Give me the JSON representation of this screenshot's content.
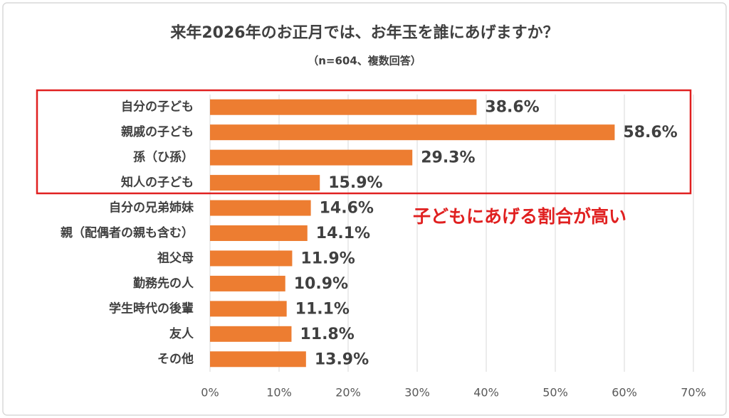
{
  "chart_data": {
    "type": "barh",
    "title": "来年2026年のお正月では、お年玉を誰にあげますか？",
    "subtitle": "（n=604、複数回答）",
    "annotation": "子どもにあげる割合が高い",
    "categories": [
      "自分の子ども",
      "親戚の子ども",
      "孫（ひ孫）",
      "知人の子ども",
      "自分の兄弟姉妹",
      "親（配偶者の親も含む）",
      "祖父母",
      "勤務先の人",
      "学生時代の後輩",
      "友人",
      "その他"
    ],
    "values": [
      38.6,
      58.6,
      29.3,
      15.9,
      14.6,
      14.1,
      11.9,
      10.9,
      11.1,
      11.8,
      13.9
    ],
    "value_labels": [
      "38.6%",
      "58.6%",
      "29.3%",
      "15.9%",
      "14.6%",
      "14.1%",
      "11.9%",
      "10.9%",
      "11.1%",
      "11.8%",
      "13.9%"
    ],
    "color": "#ed7d31",
    "xlim": [
      0,
      70
    ],
    "xticks": [
      {
        "value": 0,
        "label": "0%"
      },
      {
        "value": 10,
        "label": "10%"
      },
      {
        "value": 20,
        "label": "20%"
      },
      {
        "value": 30,
        "label": "30%"
      },
      {
        "value": 40,
        "label": "40%"
      },
      {
        "value": 50,
        "label": "50%"
      },
      {
        "value": 60,
        "label": "60%"
      },
      {
        "value": 70,
        "label": "70%"
      }
    ],
    "grid": true
  }
}
